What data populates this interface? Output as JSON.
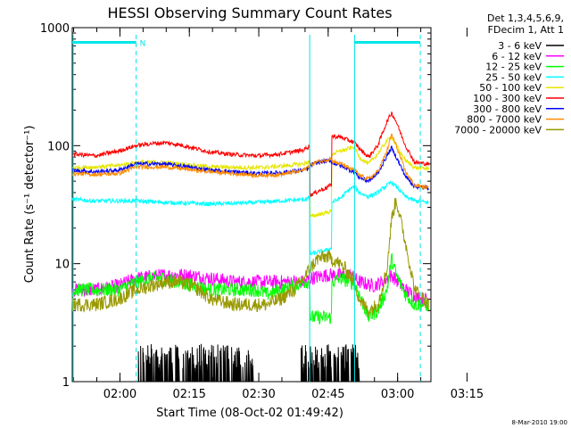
{
  "chart_data": {
    "type": "line",
    "title": "HESSI Observing Summary Count Rates",
    "xlabel": "Start Time (08-Oct-02 01:49:42)",
    "ylabel": "Count Rate (s⁻¹ detector⁻¹)",
    "y_scale": "log",
    "ylim": [
      1,
      1000
    ],
    "y_ticks": [
      {
        "v": 1,
        "label": "1"
      },
      {
        "v": 10,
        "label": "10"
      },
      {
        "v": 100,
        "label": "100"
      },
      {
        "v": 1000,
        "label": "1000"
      }
    ],
    "x_unit": "minutes after 01:49:42",
    "xlim": [
      0,
      77.5
    ],
    "x_ticks": [
      {
        "v": 10.3,
        "label": "02:00"
      },
      {
        "v": 25.3,
        "label": "02:15"
      },
      {
        "v": 40.3,
        "label": "02:30"
      },
      {
        "v": 55.3,
        "label": "02:45"
      },
      {
        "v": 70.3,
        "label": "03:00"
      },
      {
        "v": 85.3,
        "label": "03:15"
      }
    ],
    "legend_header": [
      "Det 1,3,4,5,6,9,",
      "FDecim 1, Att 1"
    ],
    "legend_placement": "right",
    "footer": "8-Mar-2010 19:00",
    "flags": [
      {
        "label": "N",
        "x_start": 0,
        "x_end": 13.8,
        "level": 750,
        "color": "#00e6e6"
      },
      {
        "label": "",
        "x_start": 61.0,
        "x_end": 75.2,
        "level": 750,
        "color": "#00e6e6"
      }
    ],
    "vlines": [
      {
        "x": 0.2,
        "style": "solid",
        "color": "#00e6e6"
      },
      {
        "x": 13.8,
        "style": "dashed",
        "color": "#00e6e6"
      },
      {
        "x": 51.3,
        "style": "solid",
        "color": "#00e6e6"
      },
      {
        "x": 61.0,
        "style": "solid",
        "color": "#00e6e6"
      },
      {
        "x": 75.2,
        "style": "dashed",
        "color": "#00e6e6"
      }
    ],
    "series": [
      {
        "name": "3 - 6 keV",
        "color": "#000000",
        "noisy_spikes": true,
        "x": [
          0,
          14,
          14.1,
          22,
          30,
          40,
          49,
          49.1,
          55,
          56,
          62,
          62.1,
          77
        ],
        "y": [
          1,
          1,
          2,
          2,
          2,
          1,
          1,
          2,
          2,
          2,
          2,
          1,
          1
        ]
      },
      {
        "name": "6 - 12 keV",
        "color": "#ff00ff",
        "x": [
          0,
          5,
          10,
          13.8,
          20,
          25,
          30,
          35,
          40,
          45,
          50,
          51.3,
          55,
          56,
          60,
          61,
          62,
          65,
          67,
          69,
          72,
          75,
          77
        ],
        "y": [
          6,
          6,
          6.5,
          7.5,
          8,
          8,
          7.5,
          7,
          7,
          7,
          7,
          7.5,
          8,
          8,
          8,
          7.5,
          7,
          6.5,
          7,
          8,
          6,
          5,
          5
        ]
      },
      {
        "name": "12 - 25 keV",
        "color": "#00ff00",
        "x": [
          0,
          5,
          10,
          13.8,
          17,
          20,
          23,
          26,
          30,
          35,
          40,
          42,
          45,
          48,
          50,
          51.3,
          51.4,
          53,
          55,
          56,
          56.1,
          58,
          60,
          61,
          62,
          64,
          66,
          68,
          69,
          70,
          72,
          74,
          77
        ],
        "y": [
          6,
          6,
          6,
          7,
          7.5,
          7.5,
          7,
          6.5,
          6,
          6,
          6,
          5.5,
          6,
          6.5,
          7,
          7,
          3.5,
          3.5,
          3.5,
          3.5,
          7,
          7.5,
          7,
          6.8,
          5.5,
          3.5,
          4,
          6,
          11,
          8,
          5.5,
          4.5,
          4.5
        ]
      },
      {
        "name": "25 - 50 keV",
        "color": "#00ffff",
        "x": [
          0,
          5,
          10,
          13.8,
          20,
          30,
          40,
          45,
          50,
          51.3,
          51.4,
          53,
          55,
          56,
          56.1,
          58,
          60,
          61,
          62,
          64,
          66,
          68,
          69,
          70,
          72,
          74,
          77
        ],
        "y": [
          35,
          34,
          34,
          34,
          33,
          32,
          33,
          34,
          35,
          36,
          12,
          12.5,
          13,
          13.5,
          33,
          36,
          43,
          45,
          40,
          37,
          40,
          46,
          49,
          45,
          37,
          34,
          33
        ]
      },
      {
        "name": "50 - 100 keV",
        "color": "#e6e600",
        "x": [
          0,
          5,
          10,
          13.8,
          20,
          30,
          40,
          45,
          50,
          51.3,
          51.4,
          53,
          55,
          56,
          56.1,
          58,
          60,
          61,
          62,
          64,
          66,
          68,
          69,
          70,
          72,
          74,
          77
        ],
        "y": [
          65,
          66,
          68,
          72,
          72,
          66,
          65,
          67,
          70,
          74,
          25,
          26,
          27,
          28,
          85,
          90,
          95,
          98,
          80,
          70,
          85,
          110,
          120,
          100,
          75,
          65,
          64
        ]
      },
      {
        "name": "100 - 300 keV",
        "color": "#ff0000",
        "x": [
          0,
          5,
          10,
          13.8,
          17,
          20,
          23,
          26,
          30,
          35,
          40,
          45,
          50,
          51.3,
          51.4,
          53,
          55,
          56,
          56.1,
          58,
          60,
          61,
          62,
          64,
          66,
          68,
          69,
          70,
          72,
          74,
          77
        ],
        "y": [
          85,
          82,
          90,
          100,
          104,
          106,
          102,
          96,
          88,
          84,
          82,
          85,
          92,
          100,
          38,
          41,
          44,
          47,
          120,
          118,
          110,
          106,
          95,
          80,
          100,
          160,
          190,
          160,
          100,
          72,
          70
        ]
      },
      {
        "name": "300 - 800 keV",
        "color": "#0000ff",
        "x": [
          0,
          5,
          10,
          13.8,
          20,
          30,
          40,
          45,
          50,
          51.3,
          51.4,
          53,
          55,
          56,
          56.1,
          58,
          60,
          61,
          62,
          64,
          66,
          68,
          69,
          70,
          72,
          74,
          77
        ],
        "y": [
          62,
          60,
          62,
          70,
          70,
          62,
          58,
          59,
          62,
          64,
          68,
          72,
          74,
          75,
          72,
          68,
          62,
          60,
          54,
          50,
          58,
          82,
          96,
          80,
          55,
          45,
          44
        ]
      },
      {
        "name": "800 - 7000 keV",
        "color": "#ff8c00",
        "x": [
          0,
          5,
          10,
          13.8,
          20,
          30,
          40,
          45,
          50,
          51.3,
          53,
          55,
          56,
          56.1,
          58,
          60,
          61,
          62,
          64,
          66,
          68,
          69,
          70,
          72,
          74,
          77
        ],
        "y": [
          58,
          57,
          58,
          66,
          66,
          60,
          56,
          57,
          62,
          68,
          73,
          76,
          78,
          74,
          70,
          64,
          62,
          56,
          52,
          60,
          90,
          125,
          100,
          60,
          46,
          44
        ]
      },
      {
        "name": "7000 - 20000 keV",
        "color": "#999900",
        "x": [
          0,
          5,
          10,
          13.8,
          17,
          20,
          23,
          26,
          30,
          35,
          40,
          42,
          45,
          48,
          50,
          51.3,
          53,
          55,
          57,
          59,
          61,
          62,
          64,
          66,
          68,
          69,
          70,
          72,
          74,
          77
        ],
        "y": [
          4.5,
          4.5,
          5,
          6,
          6.5,
          7,
          7,
          6.5,
          5,
          4.5,
          4.5,
          4.5,
          5,
          6,
          7.5,
          9,
          11,
          11.5,
          10.5,
          9,
          7,
          5,
          4,
          4.5,
          9,
          24,
          35,
          15,
          6,
          4.5
        ]
      }
    ]
  }
}
